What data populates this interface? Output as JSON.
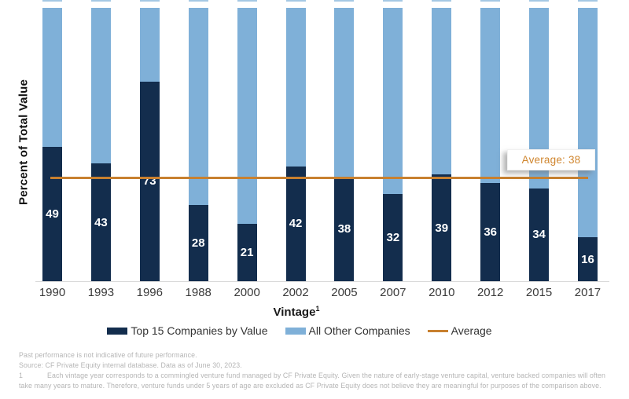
{
  "chart_data": {
    "type": "bar",
    "stacked": true,
    "categories": [
      "1990",
      "1993",
      "1996",
      "1988",
      "2000",
      "2002",
      "2005",
      "2007",
      "2010",
      "2012",
      "2015",
      "2017"
    ],
    "series": [
      {
        "name": "Top 15 Companies by Value",
        "color": "#132d4d",
        "values": [
          49,
          43,
          73,
          28,
          21,
          42,
          38,
          32,
          39,
          36,
          34,
          16
        ]
      },
      {
        "name": "All Other Companies",
        "color": "#7fb0d8",
        "values": [
          51,
          57,
          27,
          72,
          79,
          58,
          62,
          68,
          61,
          64,
          66,
          84
        ]
      }
    ],
    "average_line": {
      "label": "Average",
      "value": 38,
      "annotation": "Average: 38",
      "color": "#c8802f",
      "annotation_color": "#d0862f"
    },
    "ylabel": "Percent of Total Value",
    "xlabel": "Vintage",
    "xlabel_superscript": "1",
    "ylim": [
      0,
      100
    ],
    "grid": false,
    "legend_position": "bottom",
    "value_labels": "shown inside dark segments, white bold"
  },
  "footer": {
    "line1": "Past performance is not indicative of future performance.",
    "line2": "Source: CF Private Equity internal database. Data as of June 30, 2023.",
    "footnote_number": "1",
    "footnote_text": "Each vintage year corresponds to a commingled venture fund managed by CF Private Equity. Given the nature of early-stage venture capital, venture backed companies will often take many years to mature. Therefore, venture funds under 5 years of age are excluded as CF Private Equity does not believe they are meaningful for purposes of the comparison above."
  },
  "colors": {
    "navy": "#132d4d",
    "light_blue": "#7fb0d8",
    "orange": "#c8802f",
    "baseline_gray": "#d9d9d9",
    "footer_gray": "#b5b5b5"
  }
}
